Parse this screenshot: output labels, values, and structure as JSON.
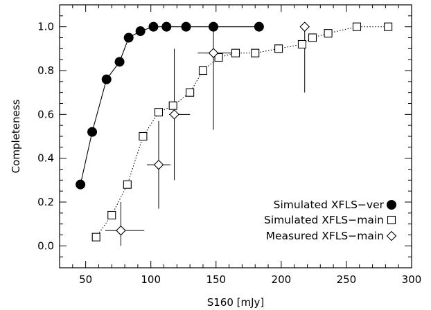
{
  "chart_data": {
    "type": "scatter",
    "title": "",
    "xlabel": "S160 [mJy]",
    "ylabel": "Completeness",
    "xlim": [
      30,
      300
    ],
    "ylim": [
      -0.1,
      1.1
    ],
    "xticks": [
      50,
      100,
      150,
      200,
      250,
      300
    ],
    "yticks": [
      0.0,
      0.2,
      0.4,
      0.6,
      0.8,
      1.0
    ],
    "xtick_labels": [
      "50",
      "100",
      "150",
      "200",
      "250",
      "300"
    ],
    "ytick_labels": [
      "0.0",
      "0.2",
      "0.4",
      "0.6",
      "0.8",
      "1.0"
    ],
    "grid": false,
    "legend_position": "bottom-right",
    "series": [
      {
        "name": "Simulated XFLS−ver",
        "marker": "filled-circle",
        "line": "solid",
        "x": [
          46,
          55,
          66,
          76,
          83,
          92,
          102,
          112,
          127,
          148,
          183
        ],
        "y": [
          0.28,
          0.52,
          0.76,
          0.84,
          0.95,
          0.98,
          1.0,
          1.0,
          1.0,
          1.0,
          1.0
        ]
      },
      {
        "name": "Simulated XFLS−main",
        "marker": "open-square",
        "line": "dotted",
        "x": [
          58,
          70,
          82,
          94,
          106,
          117,
          130,
          140,
          152,
          165,
          180,
          198,
          216,
          224,
          236,
          258,
          282
        ],
        "y": [
          0.04,
          0.14,
          0.28,
          0.5,
          0.61,
          0.64,
          0.7,
          0.8,
          0.86,
          0.88,
          0.88,
          0.9,
          0.92,
          0.95,
          0.97,
          1.0,
          1.0
        ]
      },
      {
        "name": "Measured XFLS−main",
        "marker": "open-diamond",
        "line": "none",
        "x": [
          77,
          106,
          118,
          148,
          218
        ],
        "y": [
          0.07,
          0.37,
          0.6,
          0.88,
          1.0
        ],
        "xerr_low": [
          12,
          9,
          4,
          12,
          0
        ],
        "xerr_high": [
          18,
          9,
          12,
          17,
          0
        ],
        "yerr_low": [
          0.07,
          0.2,
          0.3,
          0.35,
          0.3
        ],
        "yerr_high": [
          0.13,
          0.2,
          0.3,
          0.12,
          0.0
        ]
      }
    ]
  }
}
